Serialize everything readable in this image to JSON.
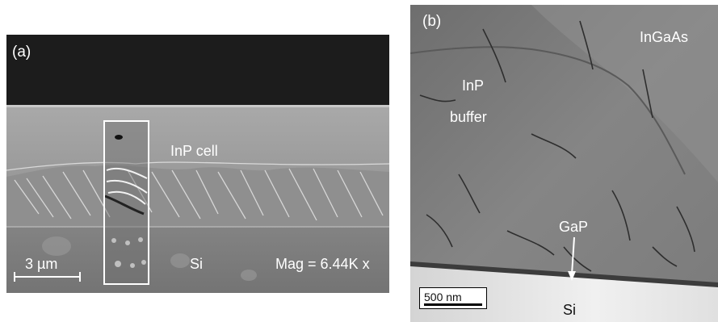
{
  "panel_a": {
    "label": "(a)",
    "layer_top": "InP cell",
    "layer_bottom": "Si",
    "scale_bar": "3 µm",
    "magnification": "Mag = 6.44K x"
  },
  "panel_b": {
    "label": "(b)",
    "layer_top_right": "InGaAs",
    "buffer_line1": "InP",
    "buffer_line2": "buffer",
    "interlayer": "GaP",
    "substrate": "Si",
    "scale_bar": "500 nm"
  },
  "colors": {
    "sem_vacuum": "#1d1d1d",
    "sem_inp": "#9a9a9a",
    "sem_si": "#7c7c7c",
    "tem_inp": "#808080",
    "tem_si": "#e6e6e6",
    "label_text": "#ffffff"
  }
}
